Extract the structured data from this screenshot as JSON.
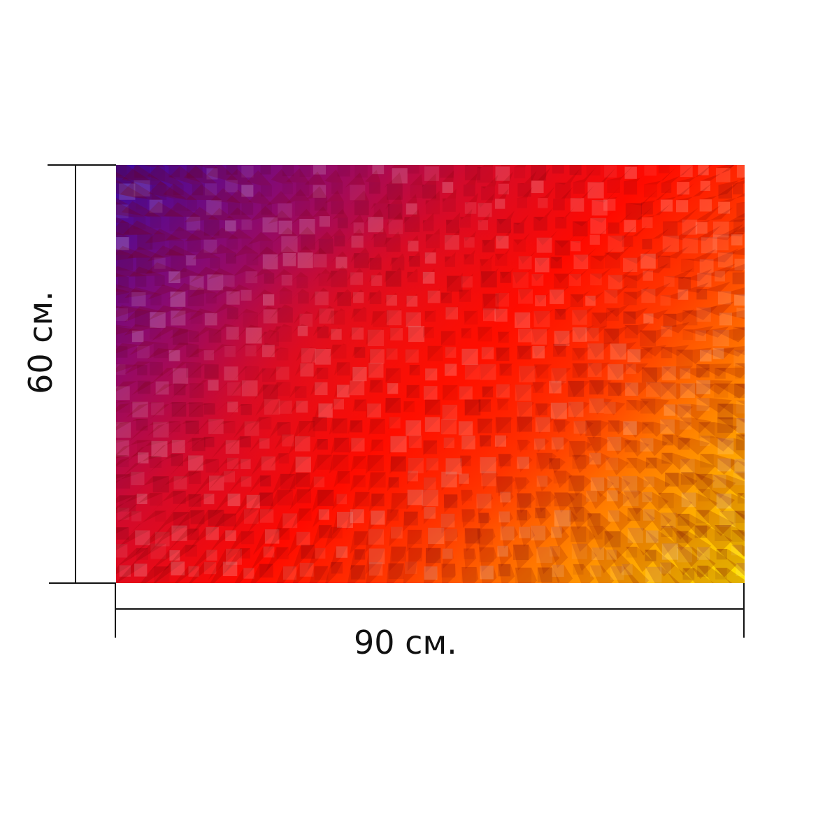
{
  "dimensions": {
    "width_label": "90 см.",
    "height_label": "60 см."
  },
  "artwork": {
    "description_colors": [
      "#3a0aa0",
      "#8a0a70",
      "#d40a2a",
      "#ff0a00",
      "#ff8a00",
      "#ffe600"
    ]
  },
  "colors": {
    "dimension_line": "#111111",
    "background": "#ffffff"
  }
}
